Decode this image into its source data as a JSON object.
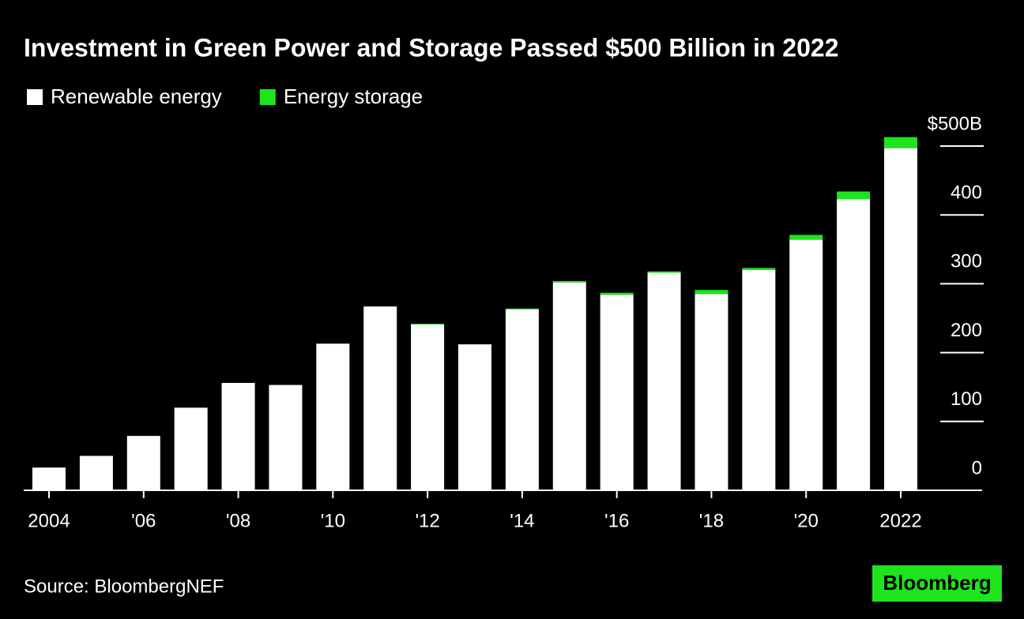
{
  "chart_data": {
    "type": "stacked-bar",
    "title": "Investment in Green Power and Storage Passed $500 Billion in 2022",
    "categories": [
      "2004",
      null,
      "'06",
      null,
      "'08",
      null,
      "'10",
      null,
      "'12",
      null,
      "'14",
      null,
      "'16",
      null,
      "'18",
      null,
      "'20",
      null,
      "2022"
    ],
    "series": [
      {
        "name": "Renewable energy",
        "color": "#ffffff",
        "values": [
          33,
          50,
          79,
          120,
          156,
          153,
          213,
          267,
          241,
          212,
          263,
          302,
          284,
          316,
          285,
          320,
          364,
          423,
          497
        ]
      },
      {
        "name": "Energy storage",
        "color": "#1de41d",
        "values": [
          0,
          0,
          0,
          0,
          0,
          0,
          0,
          0,
          1,
          0,
          1,
          2,
          3,
          2,
          6,
          3,
          7,
          11,
          16
        ]
      }
    ],
    "ylim": [
      0,
      500
    ],
    "yticks": [
      0,
      100,
      200,
      300,
      400,
      {
        "value": 500,
        "label": "$500B"
      }
    ],
    "source": "Source: BloombergNEF",
    "logo": "Bloomberg"
  }
}
